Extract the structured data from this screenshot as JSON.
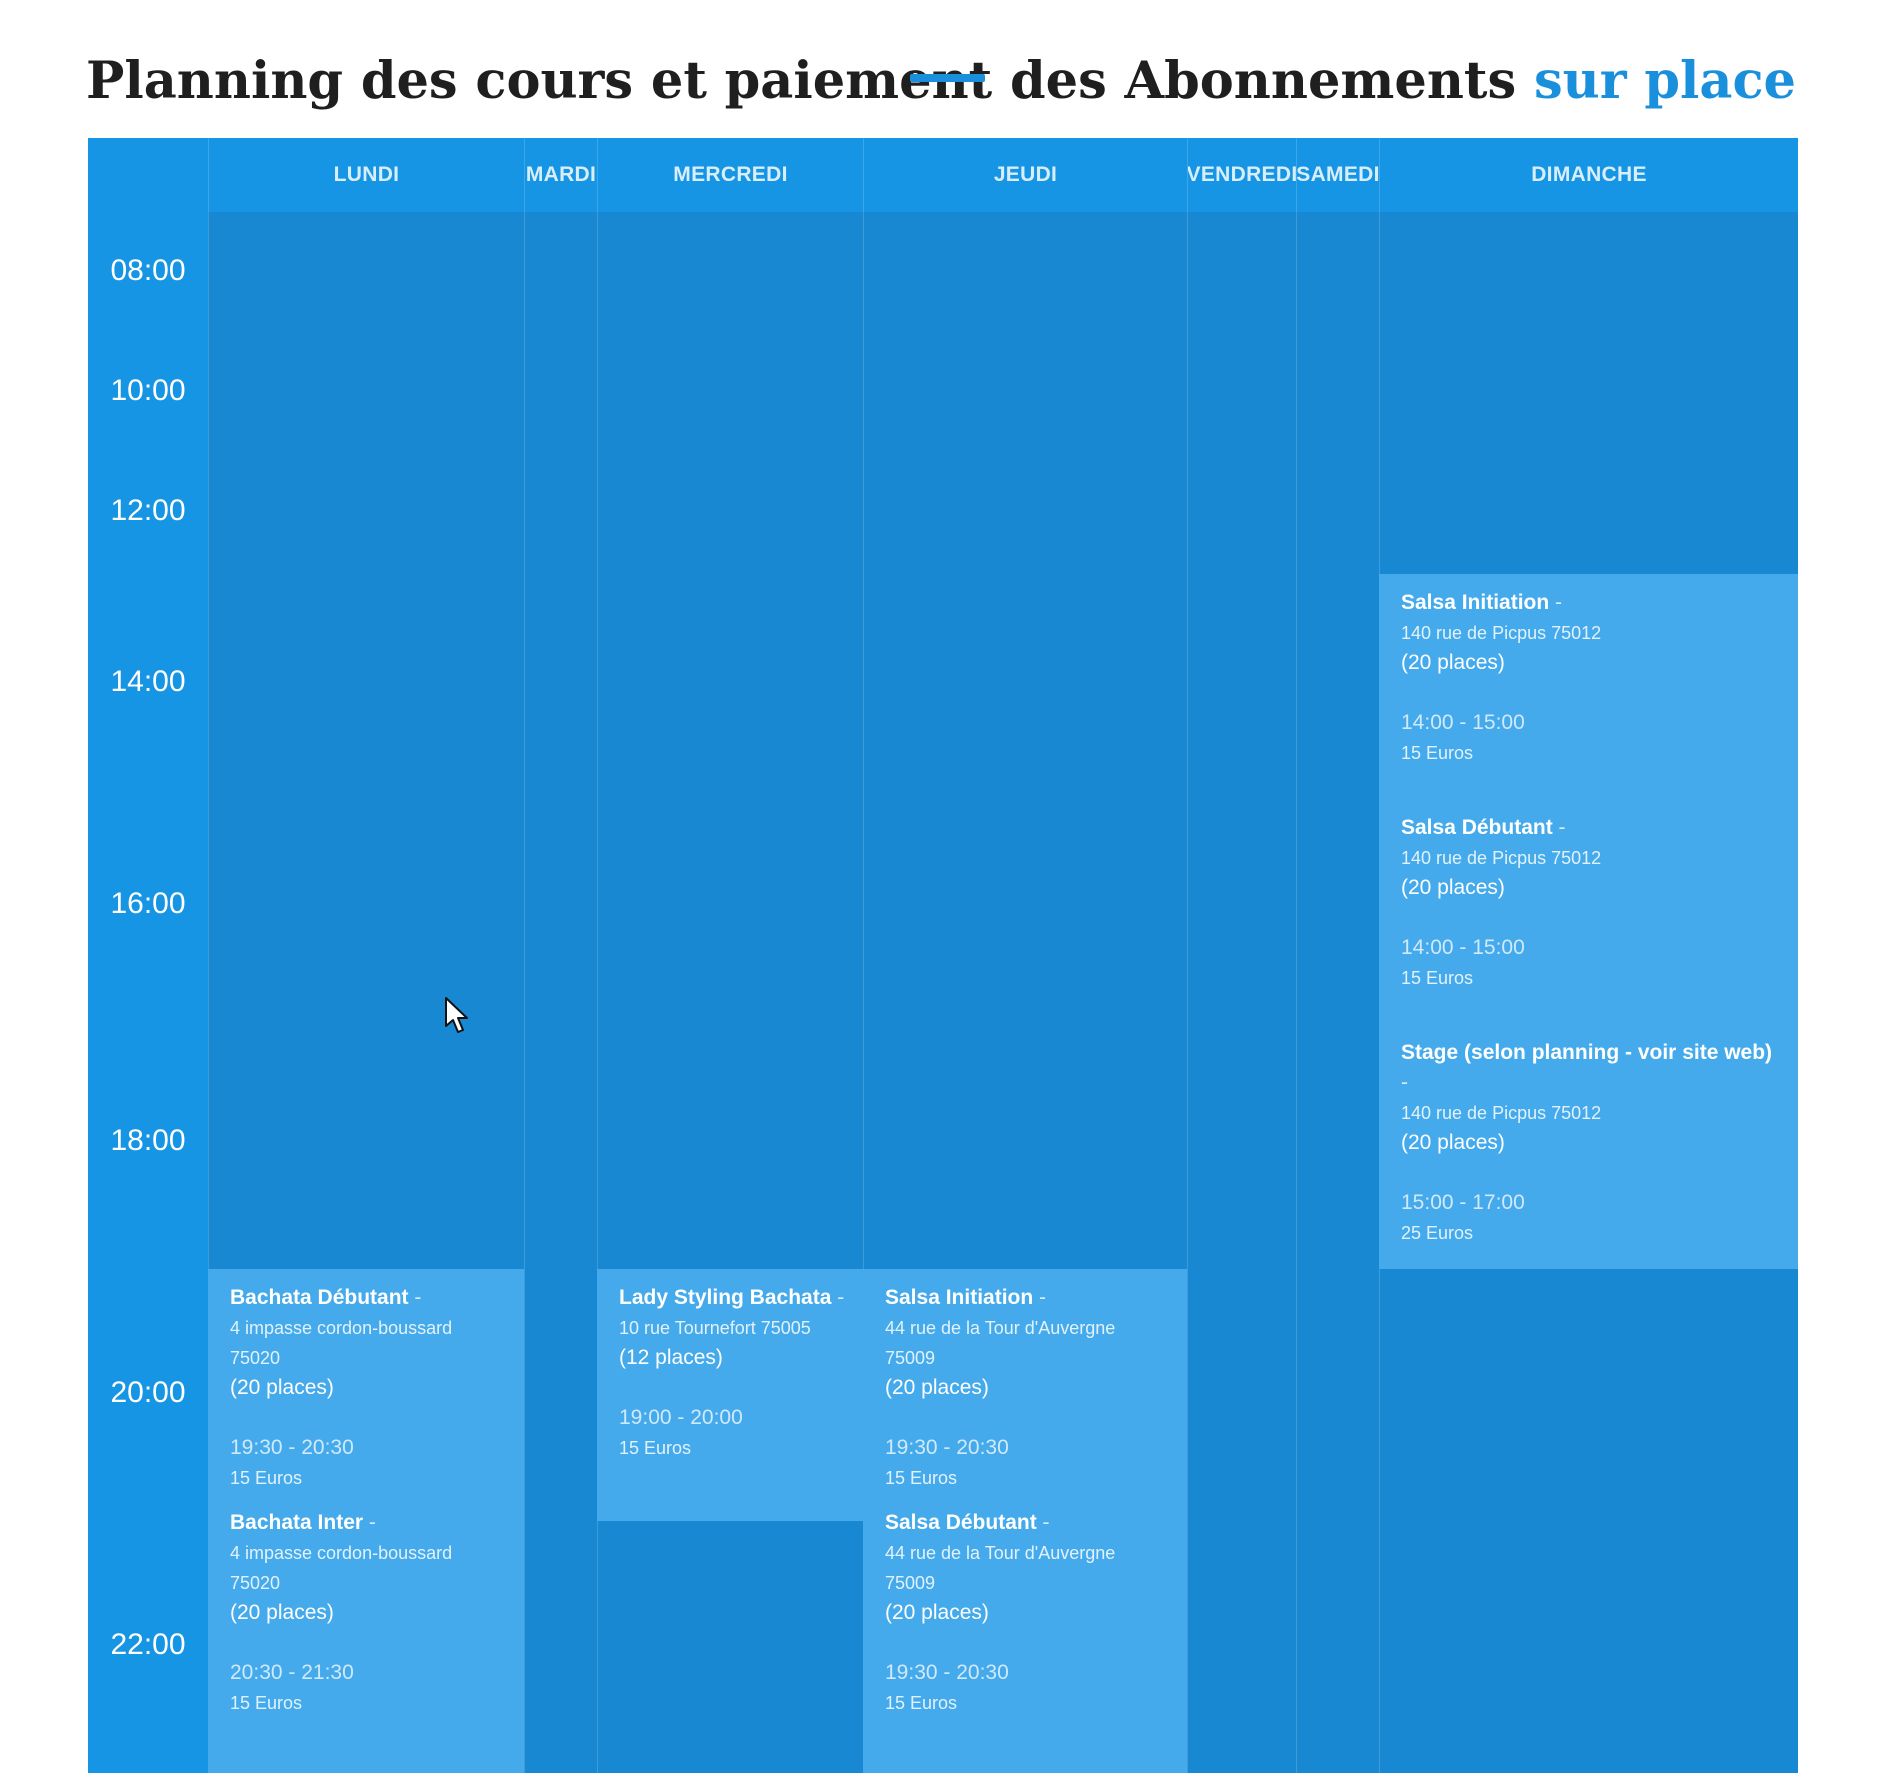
{
  "page": {
    "title_part1": "Planning des cours et paiement des Abonnements",
    "title_part2": "sur place"
  },
  "colors": {
    "accent": "#1a8fdc",
    "table_bg": "#1695e4",
    "column_bg": "#1788d1",
    "event_bg": "#45aaec"
  },
  "hours": [
    "08:00",
    "10:00",
    "12:00",
    "14:00",
    "16:00",
    "18:00",
    "20:00",
    "22:00"
  ],
  "days": [
    "LUNDI",
    "MARDI",
    "MERCREDI",
    "JEUDI",
    "VENDREDI",
    "SAMEDI",
    "DIMANCHE"
  ],
  "events": {
    "lundi": [
      {
        "title": "Bachata Débutant",
        "dash": " -",
        "address": "4 impasse cordon-boussard 75020",
        "places": "(20 places)",
        "time": "19:30 - 20:30",
        "price": "15 Euros"
      },
      {
        "title": "Bachata Inter",
        "dash": " -",
        "address": "4 impasse cordon-boussard 75020",
        "places": "(20 places)",
        "time": "20:30 - 21:30",
        "price": "15 Euros"
      }
    ],
    "mercredi": [
      {
        "title": "Lady Styling Bachata",
        "dash": " -",
        "address": "10 rue Tournefort 75005",
        "places": "(12 places)",
        "time": "19:00 - 20:00",
        "price": "15 Euros"
      }
    ],
    "jeudi": [
      {
        "title": "Salsa Initiation",
        "dash": " -",
        "address": "44 rue de la Tour d'Auvergne 75009",
        "places": "(20 places)",
        "time": "19:30 - 20:30",
        "price": "15 Euros"
      },
      {
        "title": "Salsa Débutant",
        "dash": " -",
        "address": "44 rue de la Tour d'Auvergne 75009",
        "places": "(20 places)",
        "time": "19:30 - 20:30",
        "price": "15 Euros"
      }
    ],
    "dimanche": [
      {
        "title": "Salsa Initiation",
        "dash": " -",
        "address": "140 rue de Picpus 75012",
        "places": "(20 places)",
        "time": "14:00 - 15:00",
        "price": "15 Euros"
      },
      {
        "title": "Salsa Débutant",
        "dash": " -",
        "address": "140 rue de Picpus 75012",
        "places": "(20 places)",
        "time": "14:00 - 15:00",
        "price": "15 Euros"
      },
      {
        "title": "Stage (selon planning - voir site web)",
        "dash": " -",
        "address": "140 rue de Picpus 75012",
        "places": "(20 places)",
        "time": "15:00 - 17:00",
        "price": "25 Euros"
      }
    ]
  }
}
